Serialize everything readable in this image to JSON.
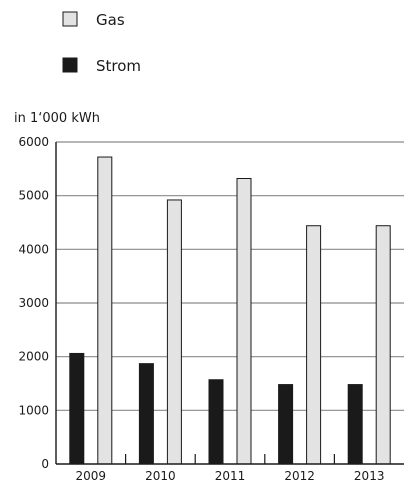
{
  "chart_data": {
    "type": "bar",
    "unit_label": "in 1‘000 kWh",
    "categories": [
      "2009",
      "2010",
      "2011",
      "2012",
      "2013"
    ],
    "series": [
      {
        "name": "Strom",
        "values": [
          2060,
          1870,
          1570,
          1480,
          1480
        ],
        "color": "#1a1a1a"
      },
      {
        "name": "Gas",
        "values": [
          5720,
          4920,
          5320,
          4440,
          4440
        ],
        "color": "#e3e3e3"
      }
    ],
    "ylim": [
      0,
      6000
    ],
    "yticks": [
      "0",
      "1000",
      "2000",
      "3000",
      "4000",
      "5000",
      "6000"
    ],
    "grid": true,
    "legend": {
      "placement": "top-left",
      "order": [
        "Gas",
        "Strom"
      ]
    }
  }
}
